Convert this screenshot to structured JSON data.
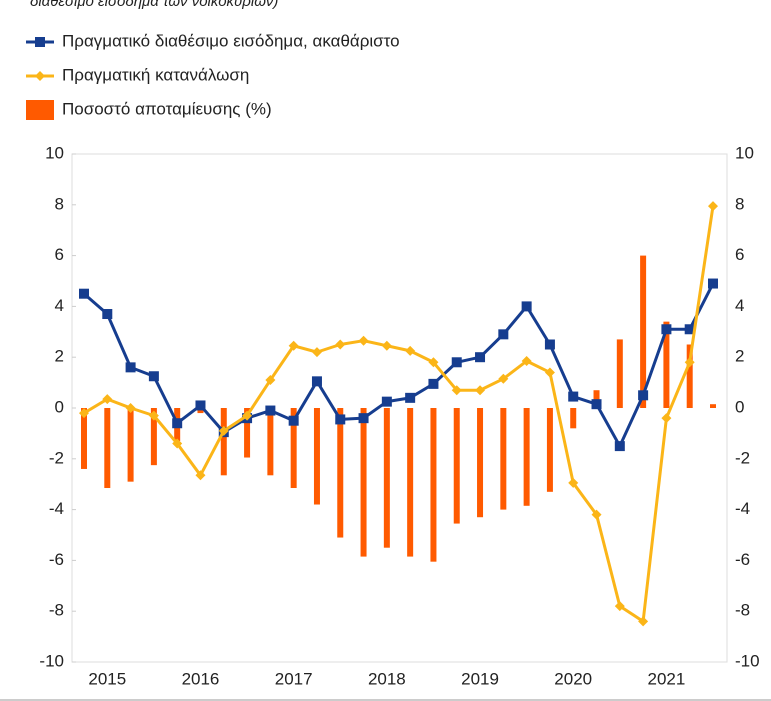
{
  "chart_data": {
    "type": "combo",
    "subtitle": "διαθέσιμο εισόδημα των νοικοκυριών)",
    "categories": [
      null,
      "2015",
      null,
      null,
      null,
      "2016",
      null,
      null,
      null,
      "2017",
      null,
      null,
      null,
      "2018",
      null,
      null,
      null,
      "2019",
      null,
      null,
      null,
      "2020",
      null,
      null,
      null,
      "2021",
      null,
      null
    ],
    "series": [
      {
        "name": "Πραγματικό διαθέσιμο εισόδημα, ακαθάριστο",
        "kind": "line",
        "marker": "square",
        "color": "#163d8f",
        "values": [
          4.5,
          3.7,
          1.6,
          1.25,
          -0.6,
          0.1,
          -0.95,
          -0.4,
          -0.1,
          -0.5,
          1.05,
          -0.45,
          -0.4,
          0.25,
          0.4,
          0.95,
          1.8,
          2.0,
          2.9,
          4.0,
          2.5,
          0.45,
          0.15,
          -1.5,
          0.5,
          3.1,
          3.1,
          4.9
        ]
      },
      {
        "name": "Πραγματική κατανάλωση",
        "kind": "line",
        "marker": "diamond",
        "color": "#fbb518",
        "values": [
          -0.2,
          0.35,
          0.0,
          -0.3,
          -1.4,
          -2.65,
          -0.9,
          -0.3,
          1.1,
          2.45,
          2.2,
          2.5,
          2.65,
          2.45,
          2.25,
          1.8,
          0.7,
          0.7,
          1.15,
          1.85,
          1.4,
          -2.95,
          -4.2,
          -7.8,
          -8.4,
          -0.4,
          1.8,
          7.95
        ]
      },
      {
        "name": "Ποσοστό αποταμίευσης (%)",
        "kind": "bar",
        "color": "#ff5a00",
        "values": [
          -2.4,
          -3.15,
          -2.9,
          -2.25,
          -1.3,
          -0.2,
          -2.65,
          -1.95,
          -2.65,
          -3.15,
          -3.8,
          -5.1,
          -5.85,
          -5.5,
          -5.85,
          -6.05,
          -4.55,
          -4.3,
          -4.0,
          -3.85,
          -3.3,
          -0.8,
          0.7,
          2.7,
          6.0,
          3.4,
          2.5,
          0.15
        ]
      }
    ],
    "ylim": [
      -10,
      10
    ],
    "yticks": [
      -10,
      -8,
      -6,
      -4,
      -2,
      0,
      2,
      4,
      6,
      8,
      10
    ],
    "y2lim": [
      -10,
      10
    ],
    "y2ticks": [
      -10,
      -8,
      -6,
      -4,
      -2,
      0,
      2,
      4,
      6,
      8,
      10
    ]
  }
}
